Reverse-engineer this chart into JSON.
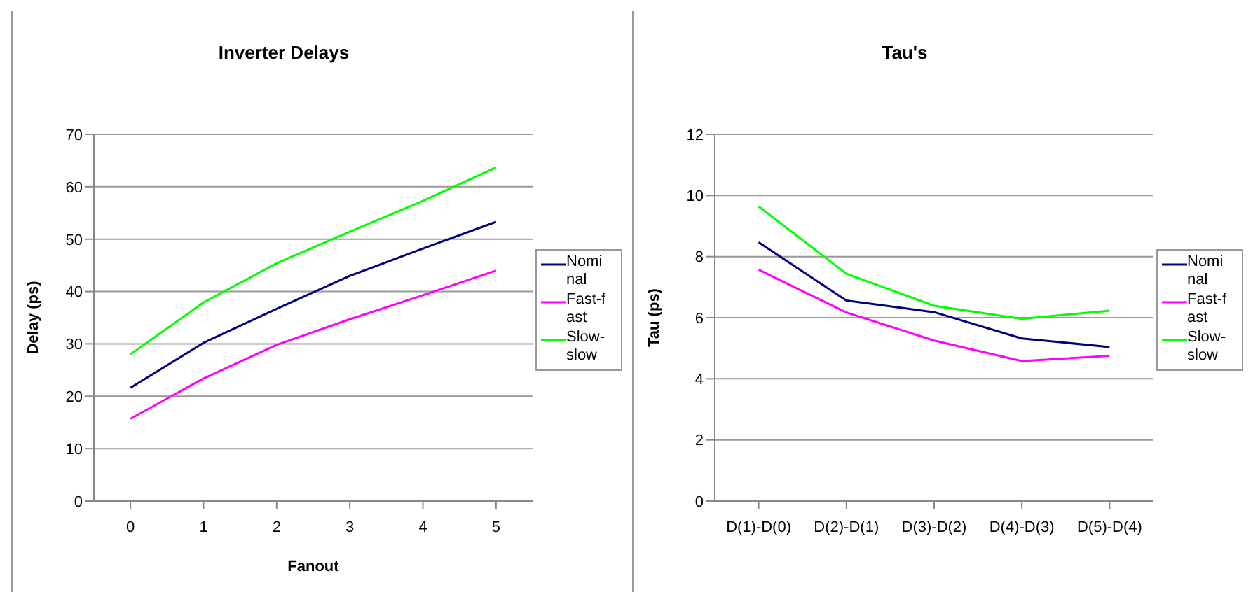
{
  "chart_data": [
    {
      "type": "line",
      "title": "Inverter Delays",
      "xlabel": "Fanout",
      "ylabel": "Delay (ps)",
      "categories": [
        "0",
        "1",
        "2",
        "3",
        "4",
        "5"
      ],
      "ylim": [
        0,
        70
      ],
      "yticks": [
        0,
        10,
        20,
        30,
        40,
        50,
        60,
        70
      ],
      "grid": "y",
      "legend": "right",
      "marker": "none",
      "line_style": "solid",
      "series": [
        {
          "name": "Nominal",
          "color": "#000080",
          "values": [
            21.6,
            30.2,
            36.7,
            43,
            48.2,
            53.3
          ]
        },
        {
          "name": "Fast-fast",
          "color": "#ff00ff",
          "values": [
            15.7,
            23.4,
            29.8,
            34.7,
            39.3,
            44
          ]
        },
        {
          "name": "Slow-slow",
          "color": "#00ff00",
          "values": [
            28,
            37.9,
            45.4,
            51.4,
            57.3,
            63.7
          ]
        }
      ]
    },
    {
      "type": "line",
      "title": "Tau's",
      "ylabel": "Tau (ps)",
      "categories": [
        "D(1)-D(0)",
        "D(2)-D(1)",
        "D(3)-D(2)",
        "D(4)-D(3)",
        "D(5)-D(4)"
      ],
      "ylim": [
        0,
        12
      ],
      "yticks": [
        0,
        2,
        4,
        6,
        8,
        10,
        12
      ],
      "grid": "y",
      "legend": "right",
      "marker": "none",
      "line_style": "solid",
      "series": [
        {
          "name": "Nominal",
          "color": "#000080",
          "values": [
            8.47,
            6.56,
            6.18,
            5.32,
            5.04
          ]
        },
        {
          "name": "Fast-fast",
          "color": "#ff00ff",
          "values": [
            7.57,
            6.17,
            5.25,
            4.58,
            4.75
          ]
        },
        {
          "name": "Slow-slow",
          "color": "#00ff00",
          "values": [
            9.64,
            7.44,
            6.39,
            5.96,
            6.23
          ]
        }
      ]
    }
  ]
}
